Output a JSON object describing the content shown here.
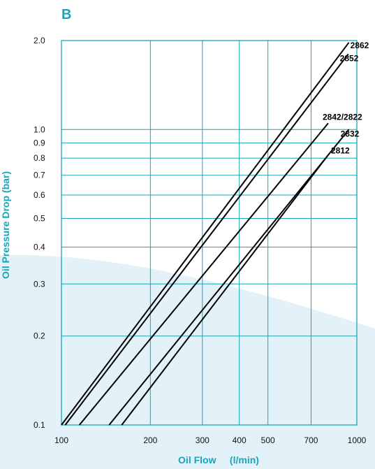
{
  "panel_label": "B",
  "colors": {
    "accent": "#1aa4b8",
    "background_swoosh": "#e3f2f8",
    "line": "#000000"
  },
  "chart_data": {
    "type": "line",
    "x_scale": "log",
    "y_scale": "log",
    "xlabel": "Oil Flow     (l/min)",
    "ylabel": "Oil Pressure Drop (bar)",
    "xlim": [
      100,
      1000
    ],
    "ylim": [
      0.1,
      2.0
    ],
    "x_ticks": [
      100,
      200,
      300,
      400,
      500,
      700,
      1000
    ],
    "x_tick_labels": [
      "100",
      "200",
      "300",
      "400",
      "500",
      "700",
      "1000"
    ],
    "y_ticks": [
      0.1,
      0.2,
      0.3,
      0.4,
      0.5,
      0.6,
      0.7,
      0.8,
      0.9,
      1.0,
      2.0
    ],
    "y_tick_labels": [
      "0.1",
      "0.2",
      "0.3",
      "0.4",
      "0.5",
      "0.6",
      "0.7",
      "0.8",
      "0.9",
      "1.0",
      "2.0"
    ],
    "grid": true,
    "series": [
      {
        "name": "2862",
        "x": [
          100,
          940
        ],
        "y": [
          0.1,
          1.97
        ]
      },
      {
        "name": "2852",
        "x": [
          103,
          935
        ],
        "y": [
          0.1,
          1.8
        ]
      },
      {
        "name": "2842/2822",
        "x": [
          115,
          800
        ],
        "y": [
          0.1,
          1.05
        ]
      },
      {
        "name": "2832",
        "x": [
          145,
          940
        ],
        "y": [
          0.1,
          1.0
        ]
      },
      {
        "name": "2812",
        "x": [
          160,
          800
        ],
        "y": [
          0.1,
          0.82
        ]
      }
    ]
  }
}
